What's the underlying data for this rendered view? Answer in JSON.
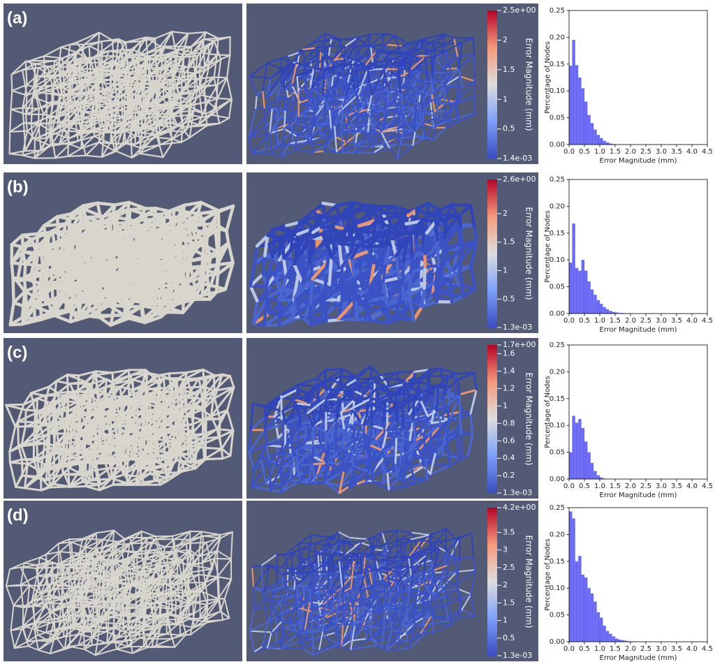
{
  "panel_labels": [
    "(a)",
    "(b)",
    "(c)",
    "(d)"
  ],
  "colorbars": [
    {
      "title": "Error Magnitude (mm)",
      "range": [
        0.0014,
        2.5
      ],
      "ticks": [
        {
          "value": 2.5,
          "label": "2.5e+00"
        },
        2,
        1.5,
        1,
        0.5,
        {
          "value": 0.0014,
          "label": "1.4e-03"
        }
      ]
    },
    {
      "title": "Error Magnitude (mm)",
      "range": [
        0.0013,
        2.6
      ],
      "ticks": [
        {
          "value": 2.6,
          "label": "2.6e+00"
        },
        2,
        1.5,
        1,
        0.5,
        {
          "value": 0.0013,
          "label": "1.3e-03"
        }
      ]
    },
    {
      "title": "Error Magnitude (mm)",
      "range": [
        0.0013,
        1.7
      ],
      "ticks": [
        {
          "value": 1.7,
          "label": "1.7e+00"
        },
        1.6,
        1.4,
        1.2,
        1,
        0.8,
        0.6,
        0.4,
        0.2,
        {
          "value": 0.0013,
          "label": "1.3e-03"
        }
      ]
    },
    {
      "title": "Error Magnitude (mm)",
      "range": [
        0.0013,
        4.2
      ],
      "ticks": [
        {
          "value": 4.2,
          "label": "4.2e+00"
        },
        3.5,
        3,
        2.5,
        2,
        1.5,
        1,
        0.5,
        {
          "value": 0.0013,
          "label": "1.3e-03"
        }
      ]
    }
  ],
  "chart_data": [
    {
      "type": "histogram",
      "color": "#6a6af5",
      "xlabel": "Error Magnitude (mm)",
      "ylabel": "Percentage of Nodes",
      "bins": [
        0,
        0.1,
        0.2,
        0.3,
        0.4,
        0.5,
        0.6,
        0.7,
        0.8,
        0.9,
        1,
        1.1,
        1.2,
        1.3,
        1.4,
        1.5,
        1.6,
        1.7,
        1.8,
        1.9,
        2,
        2.1,
        2.2,
        2.3,
        2.4,
        2.5
      ],
      "values": [
        0.147,
        0.195,
        0.148,
        0.125,
        0.105,
        0.08,
        0.055,
        0.04,
        0.028,
        0.018,
        0.012,
        0.007,
        0.004,
        0.002,
        0.001,
        0.0005,
        0,
        0,
        0,
        0,
        0,
        0,
        0,
        0,
        0
      ],
      "xlim": [
        0,
        4.5
      ],
      "ylim": [
        0,
        0.25
      ],
      "xticks": [
        {
          "value": 0,
          "label": "0.0"
        },
        0.5,
        {
          "value": 1,
          "label": "1.0"
        },
        1.5,
        {
          "value": 2,
          "label": "2.0"
        },
        2.5,
        {
          "value": 3,
          "label": "3.0"
        },
        3.5,
        {
          "value": 4,
          "label": "4.0"
        },
        4.5
      ],
      "yticks": [
        {
          "value": 0,
          "label": "0.00"
        },
        0.05,
        {
          "value": 0.1,
          "label": "0.10"
        },
        0.15,
        {
          "value": 0.2,
          "label": "0.20"
        },
        0.25
      ]
    },
    {
      "type": "histogram",
      "color": "#6a6af5",
      "xlabel": "Error Magnitude (mm)",
      "ylabel": "Percentage of Nodes",
      "bins": [
        0,
        0.1,
        0.2,
        0.3,
        0.4,
        0.5,
        0.6,
        0.7,
        0.8,
        0.9,
        1,
        1.1,
        1.2,
        1.3,
        1.4,
        1.5,
        1.6,
        1.7,
        1.8,
        1.9,
        2,
        2.1,
        2.2,
        2.3,
        2.4,
        2.5
      ],
      "values": [
        0.095,
        0.168,
        0.085,
        0.08,
        0.1,
        0.08,
        0.06,
        0.045,
        0.035,
        0.025,
        0.018,
        0.012,
        0.008,
        0.005,
        0.003,
        0.002,
        0.001,
        0.001,
        0.0005,
        0.0003,
        0.0002,
        0.0001,
        0,
        0,
        0
      ],
      "xlim": [
        0,
        4.5
      ],
      "ylim": [
        0,
        0.25
      ],
      "xticks": [
        {
          "value": 0,
          "label": "0.0"
        },
        0.5,
        {
          "value": 1,
          "label": "1.0"
        },
        1.5,
        {
          "value": 2,
          "label": "2.0"
        },
        2.5,
        {
          "value": 3,
          "label": "3.0"
        },
        3.5,
        {
          "value": 4,
          "label": "4.0"
        },
        4.5
      ],
      "yticks": [
        {
          "value": 0,
          "label": "0.00"
        },
        0.05,
        {
          "value": 0.1,
          "label": "0.10"
        },
        0.15,
        {
          "value": 0.2,
          "label": "0.20"
        },
        0.25
      ]
    },
    {
      "type": "histogram",
      "color": "#6a6af5",
      "xlabel": "Error Magnitude (mm)",
      "ylabel": "Percentage of Nodes",
      "bins": [
        0,
        0.1,
        0.2,
        0.3,
        0.4,
        0.5,
        0.6,
        0.7,
        0.8,
        0.9,
        1,
        1.1,
        1.2,
        1.3,
        1.4,
        1.5,
        1.6,
        1.7,
        1.8,
        1.9,
        2,
        2.1,
        2.2,
        2.3,
        2.4,
        2.5
      ],
      "values": [
        0.05,
        0.118,
        0.105,
        0.112,
        0.095,
        0.07,
        0.05,
        0.03,
        0.015,
        0.007,
        0.003,
        0.001,
        0,
        0,
        0,
        0,
        0,
        0,
        0,
        0,
        0,
        0,
        0,
        0,
        0
      ],
      "xlim": [
        0,
        4.5
      ],
      "ylim": [
        0,
        0.25
      ],
      "xticks": [
        {
          "value": 0,
          "label": "0.0"
        },
        0.5,
        {
          "value": 1,
          "label": "1.0"
        },
        1.5,
        {
          "value": 2,
          "label": "2.0"
        },
        2.5,
        {
          "value": 3,
          "label": "3.0"
        },
        3.5,
        {
          "value": 4,
          "label": "4.0"
        },
        4.5
      ],
      "yticks": [
        {
          "value": 0,
          "label": "0.00"
        },
        0.05,
        {
          "value": 0.1,
          "label": "0.10"
        },
        0.15,
        {
          "value": 0.2,
          "label": "0.20"
        },
        0.25
      ]
    },
    {
      "type": "histogram",
      "color": "#6a6af5",
      "xlabel": "Error Magnitude (mm)",
      "ylabel": "Percentage of Nodes",
      "bins": [
        0,
        0.1,
        0.2,
        0.3,
        0.4,
        0.5,
        0.6,
        0.7,
        0.8,
        0.9,
        1,
        1.1,
        1.2,
        1.3,
        1.4,
        1.5,
        1.6,
        1.7,
        1.8,
        1.9,
        2,
        2.1,
        2.2,
        2.3,
        2.4,
        2.5
      ],
      "values": [
        0.243,
        0.23,
        0.15,
        0.16,
        0.125,
        0.12,
        0.1,
        0.09,
        0.075,
        0.055,
        0.045,
        0.03,
        0.02,
        0.015,
        0.01,
        0.006,
        0.004,
        0.003,
        0.002,
        0.001,
        0.0008,
        0.0005,
        0.0003,
        0.0002,
        0.0001
      ],
      "xlim": [
        0,
        4.5
      ],
      "ylim": [
        0,
        0.25
      ],
      "xticks": [
        {
          "value": 0,
          "label": "0.0"
        },
        0.5,
        {
          "value": 1,
          "label": "1.0"
        },
        1.5,
        {
          "value": 2,
          "label": "2.0"
        },
        2.5,
        {
          "value": 3,
          "label": "3.0"
        },
        3.5,
        {
          "value": 4,
          "label": "4.0"
        },
        4.5
      ],
      "yticks": [
        {
          "value": 0,
          "label": "0.00"
        },
        0.05,
        {
          "value": 0.1,
          "label": "0.10"
        },
        0.15,
        {
          "value": 0.2,
          "label": "0.20"
        },
        0.25
      ]
    }
  ]
}
